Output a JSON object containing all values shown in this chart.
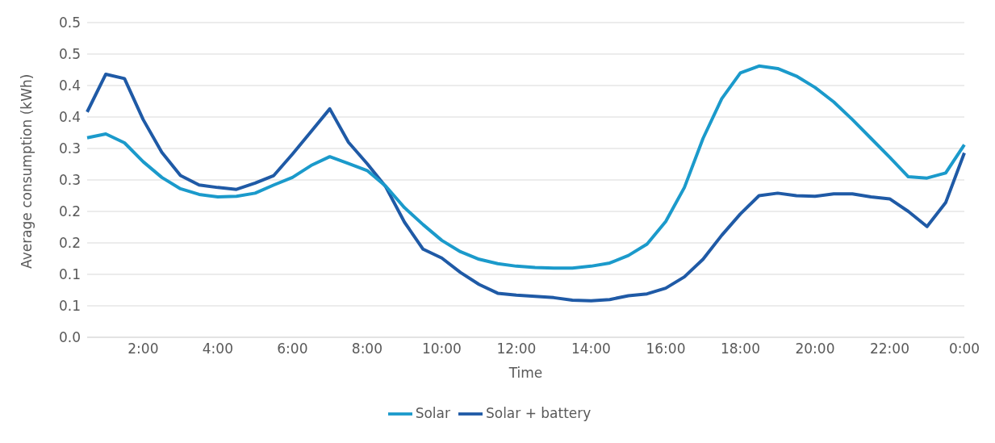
{
  "chart_data": {
    "type": "line",
    "xlabel": "Time",
    "ylabel": "Average consumption (kWh)",
    "categories": [
      null,
      null,
      null,
      "2:00",
      null,
      null,
      null,
      "4:00",
      null,
      null,
      null,
      "6:00",
      null,
      null,
      null,
      "8:00",
      null,
      null,
      null,
      "10:00",
      null,
      null,
      null,
      "12:00",
      null,
      null,
      null,
      "14:00",
      null,
      null,
      null,
      "16:00",
      null,
      null,
      null,
      "18:00",
      null,
      null,
      null,
      "20:00",
      null,
      null,
      null,
      "22:00",
      null,
      null,
      null,
      "0:00"
    ],
    "series": [
      {
        "name": "Solar + battery",
        "color": "#1f5aa6",
        "values": [
          0.358,
          0.418,
          0.411,
          0.346,
          0.294,
          0.257,
          0.242,
          0.238,
          0.235,
          0.245,
          0.257,
          0.291,
          0.327,
          0.363,
          0.31,
          0.276,
          0.239,
          0.183,
          0.14,
          0.126,
          0.103,
          0.084,
          0.07,
          0.067,
          0.065,
          0.063,
          0.059,
          0.058,
          0.06,
          0.066,
          0.069,
          0.078,
          0.096,
          0.124,
          0.162,
          0.196,
          0.225,
          0.229,
          0.225,
          0.224,
          0.228,
          0.228,
          0.223,
          0.22,
          0.2,
          0.176,
          0.214,
          0.293
        ]
      },
      {
        "name": "Solar",
        "color": "#1b9acb",
        "values": [
          0.317,
          0.323,
          0.309,
          0.279,
          0.254,
          0.236,
          0.227,
          0.223,
          0.224,
          0.229,
          0.242,
          0.254,
          0.273,
          0.287,
          0.276,
          0.265,
          0.24,
          0.206,
          0.179,
          0.154,
          0.136,
          0.124,
          0.117,
          0.113,
          0.111,
          0.11,
          0.11,
          0.113,
          0.118,
          0.13,
          0.148,
          0.184,
          0.238,
          0.316,
          0.379,
          0.42,
          0.431,
          0.427,
          0.415,
          0.397,
          0.374,
          0.346,
          0.316,
          0.286,
          0.255,
          0.253,
          0.261,
          0.306
        ]
      }
    ],
    "ylim": [
      0,
      0.5
    ],
    "yticks": [
      {
        "value": 0,
        "label": "0.0"
      },
      {
        "value": 0.05,
        "label": "0.1"
      },
      {
        "value": 0.1,
        "label": "0.1"
      },
      {
        "value": 0.15,
        "label": "0.2"
      },
      {
        "value": 0.2,
        "label": "0.2"
      },
      {
        "value": 0.25,
        "label": "0.3"
      },
      {
        "value": 0.3,
        "label": "0.3"
      },
      {
        "value": 0.35,
        "label": "0.4"
      },
      {
        "value": 0.4,
        "label": "0.4"
      },
      {
        "value": 0.45,
        "label": "0.5"
      },
      {
        "value": 0.5,
        "label": "0.5"
      }
    ],
    "grid": "y",
    "legend": "bottom",
    "marker": "none",
    "line_style": "solid"
  }
}
